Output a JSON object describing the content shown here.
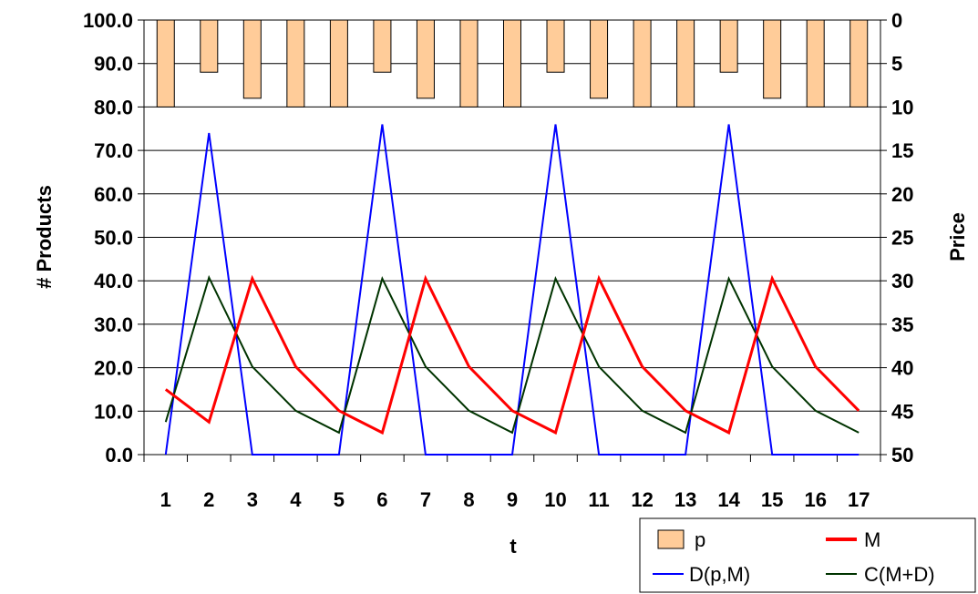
{
  "chart_data": {
    "type": "line",
    "x": [
      1,
      2,
      3,
      4,
      5,
      6,
      7,
      8,
      9,
      10,
      11,
      12,
      13,
      14,
      15,
      16,
      17
    ],
    "categories": [
      "1",
      "2",
      "3",
      "4",
      "5",
      "6",
      "7",
      "8",
      "9",
      "10",
      "11",
      "12",
      "13",
      "14",
      "15",
      "16",
      "17"
    ],
    "xlabel": "t",
    "ylabel": "# Products",
    "y2label": "Price",
    "ylim": [
      0,
      100
    ],
    "y2lim": [
      0,
      50
    ],
    "y2_reversed": true,
    "y_ticks": [
      "0.0",
      "10.0",
      "20.0",
      "30.0",
      "40.0",
      "50.0",
      "60.0",
      "70.0",
      "80.0",
      "90.0",
      "100.0"
    ],
    "y2_ticks": [
      "0",
      "5",
      "10",
      "15",
      "20",
      "25",
      "30",
      "35",
      "40",
      "45",
      "50"
    ],
    "grid": "horizontal",
    "legend_position": "bottom-right",
    "series": [
      {
        "name": "p",
        "kind": "bar",
        "axis": "secondary",
        "color": "#FFCC99",
        "values": [
          10,
          6,
          9,
          10,
          10,
          6,
          9,
          10,
          10,
          6,
          9,
          10,
          10,
          6,
          9,
          10,
          10
        ]
      },
      {
        "name": "M",
        "kind": "line",
        "axis": "primary",
        "color": "#FF0000",
        "values": [
          15,
          7.5,
          40.5,
          20.25,
          10.1,
          5.05,
          40.5,
          20.25,
          10.1,
          5.05,
          40.5,
          20.25,
          10.1,
          5.05,
          40.5,
          20.25,
          10.1
        ]
      },
      {
        "name": "D(p,M)",
        "kind": "line",
        "axis": "primary",
        "color": "#0000FF",
        "values": [
          0,
          74,
          0,
          0,
          0,
          76,
          0,
          0,
          0,
          76,
          0,
          0,
          0,
          76,
          0,
          0,
          0
        ]
      },
      {
        "name": "C(M+D)",
        "kind": "line",
        "axis": "primary",
        "color": "#003300",
        "values": [
          7.5,
          40.75,
          20.25,
          10.1,
          5.05,
          40.5,
          20.25,
          10.1,
          5.05,
          40.5,
          20.25,
          10.1,
          5.05,
          40.5,
          20.25,
          10.1,
          5.05
        ]
      }
    ]
  }
}
